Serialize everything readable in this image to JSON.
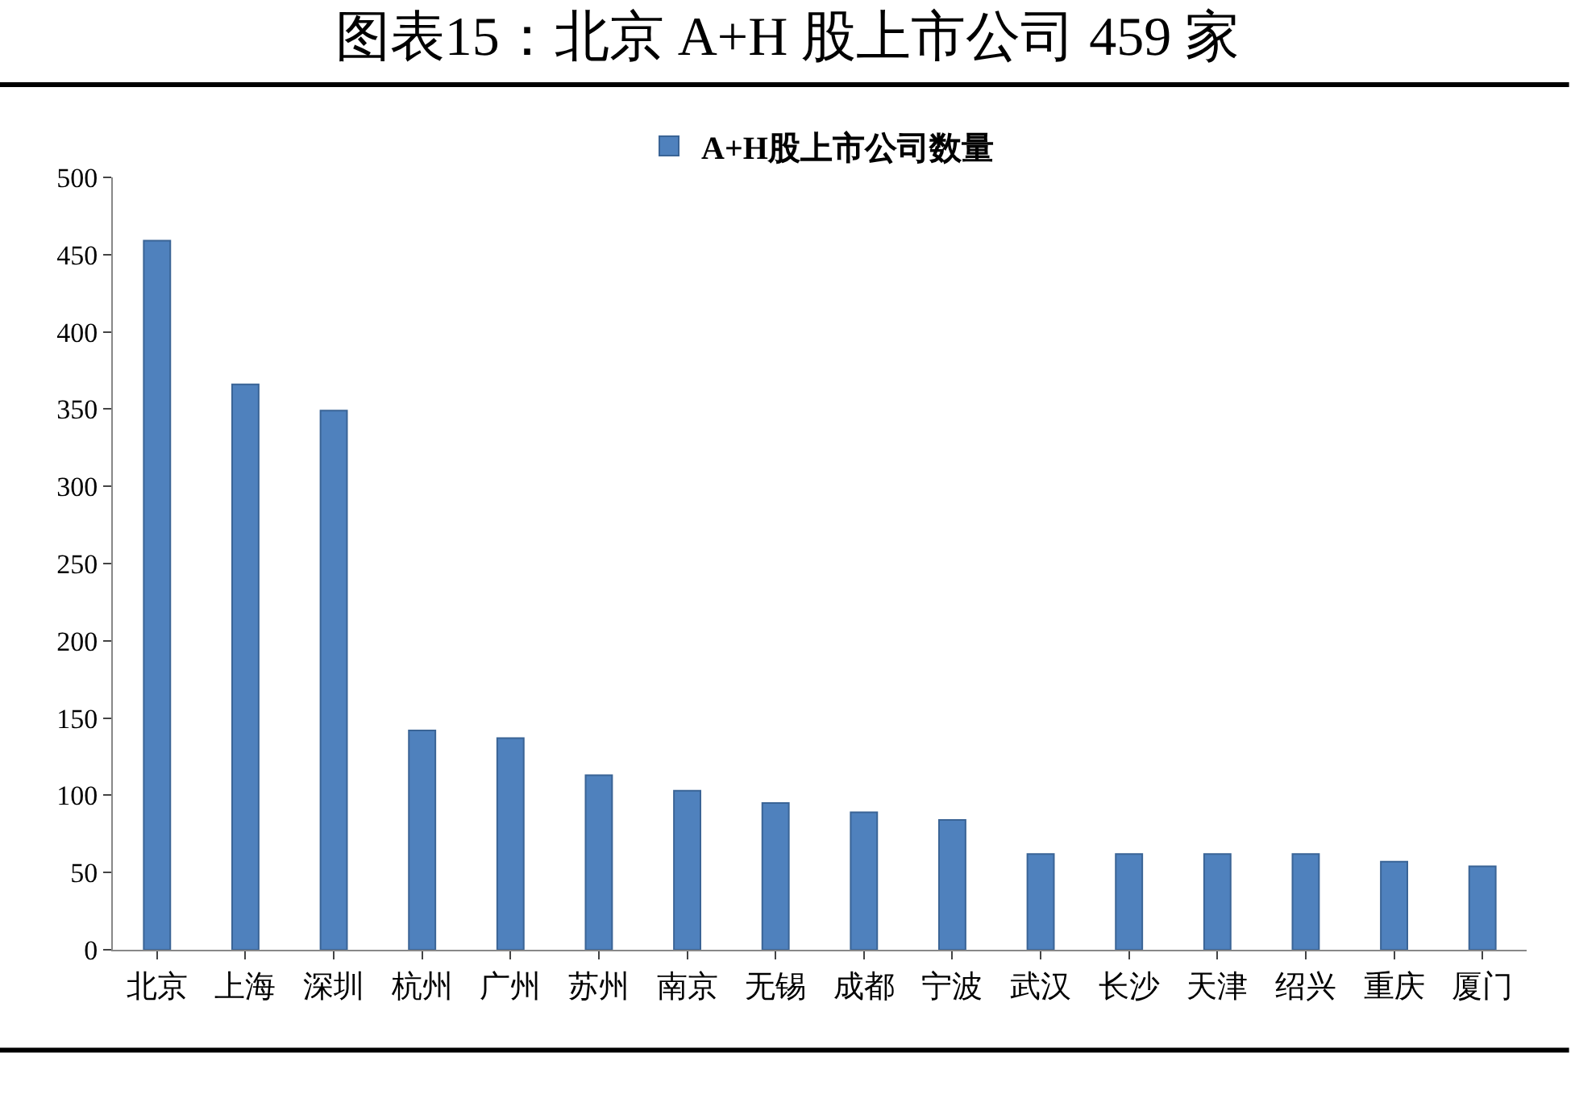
{
  "chart_data": {
    "type": "bar",
    "title": "图表15：北京 A+H 股上市公司 459 家",
    "categories": [
      "北京",
      "上海",
      "深圳",
      "杭州",
      "广州",
      "苏州",
      "南京",
      "无锡",
      "成都",
      "宁波",
      "武汉",
      "长沙",
      "天津",
      "绍兴",
      "重庆",
      "厦门"
    ],
    "series": [
      {
        "name": "A+H股上市公司数量",
        "color": "#4f81bd",
        "values": [
          459,
          366,
          349,
          142,
          137,
          113,
          103,
          95,
          89,
          84,
          62,
          62,
          62,
          62,
          57,
          54
        ]
      }
    ],
    "ylim": [
      0,
      500
    ],
    "yticks": [
      0,
      50,
      100,
      150,
      200,
      250,
      300,
      350,
      400,
      450,
      500
    ],
    "legend": "top"
  }
}
